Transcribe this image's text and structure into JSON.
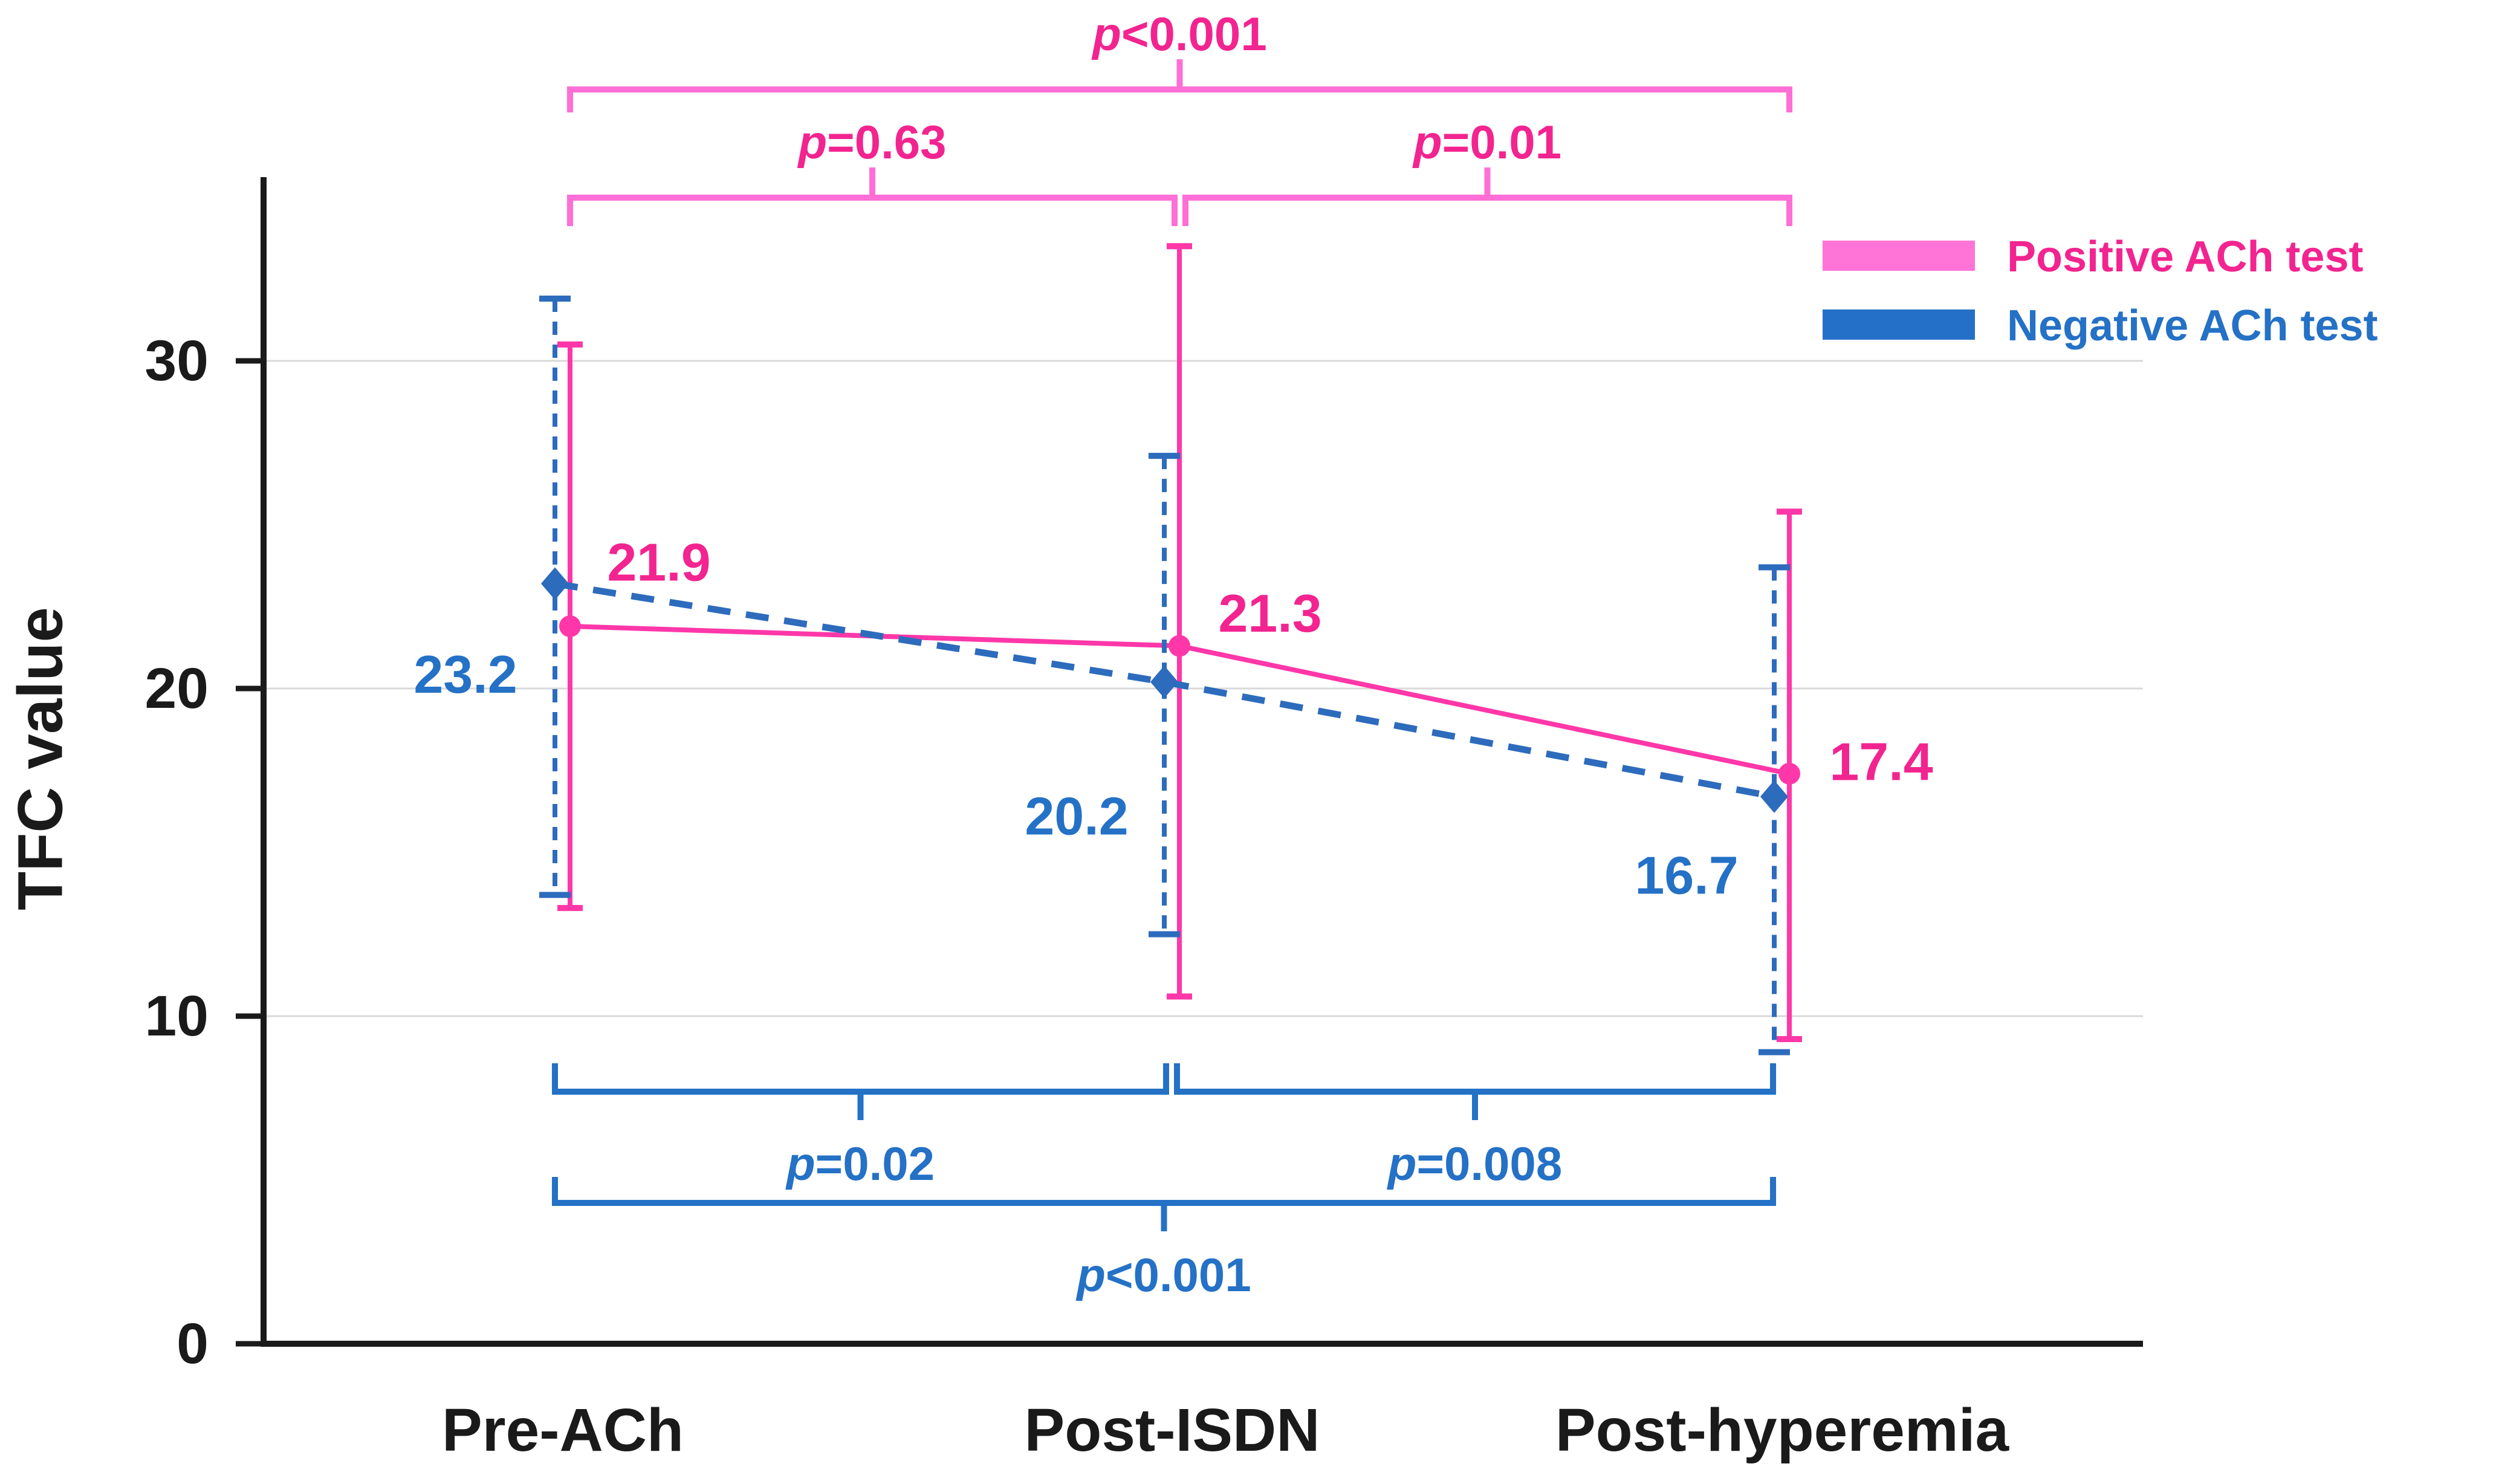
{
  "figure": {
    "background": "#ffffff",
    "description": "Line chart of TFC value across three measurement conditions for positive and negative ACh test groups, with error bars and pairwise p-value comparison brackets"
  },
  "chart_data": {
    "type": "line",
    "title": "",
    "xlabel": "",
    "ylabel": "TFC value",
    "categories": [
      "Pre-ACh",
      "Post-ISDN",
      "Post-hyperemia"
    ],
    "yticks": [
      0,
      10,
      20,
      30
    ],
    "ytick_labels": [
      "0",
      "10",
      "20",
      "30"
    ],
    "ylim": [
      0,
      36.7
    ],
    "grid": "horizontal gridlines at 10, 20, 30",
    "axis_color": "#1a1a1a",
    "grid_color": "#d9d9d9",
    "series": [
      {
        "id": "positive",
        "name": "Positive ACh test",
        "line_style": "solid",
        "marker": "circle",
        "values": [
          21.9,
          21.3,
          17.4
        ],
        "point_labels": [
          "21.9",
          "21.3",
          "17.4"
        ],
        "err_high": [
          30.5,
          33.5,
          25.4
        ],
        "err_low": [
          13.3,
          10.6,
          9.3
        ],
        "line_color": "#ff37a8",
        "text_color": "#f22490",
        "bracket_color": "#ff6fd6",
        "legend_color": "#ff74d6"
      },
      {
        "id": "negative",
        "name": "Negative ACh test",
        "line_style": "dashed",
        "marker": "diamond",
        "values": [
          23.2,
          20.2,
          16.7
        ],
        "point_labels": [
          "23.2",
          "20.2",
          "16.7"
        ],
        "err_high": [
          31.9,
          27.1,
          23.7
        ],
        "err_low": [
          13.7,
          12.5,
          8.9
        ],
        "line_color": "#2d6bbd",
        "text_color": "#2471c6",
        "bracket_color": "#2471c6",
        "legend_color": "#2470c8"
      }
    ],
    "comparisons_top": [
      {
        "label": "p<0.001",
        "from": 0,
        "to": 2,
        "row": 0
      },
      {
        "label": "p=0.63",
        "from": 0,
        "to": 1,
        "row": 1
      },
      {
        "label": "p=0.01",
        "from": 1,
        "to": 2,
        "row": 1
      }
    ],
    "comparisons_bottom": [
      {
        "label": "p=0.02",
        "from": 0,
        "to": 1,
        "row": 0
      },
      {
        "label": "p=0.008",
        "from": 1,
        "to": 2,
        "row": 0
      },
      {
        "label": "p<0.001",
        "from": 0,
        "to": 2,
        "row": 1
      }
    ],
    "legend": {
      "position": "top-right",
      "entries": [
        "Positive ACh test",
        "Negative ACh test"
      ]
    }
  }
}
